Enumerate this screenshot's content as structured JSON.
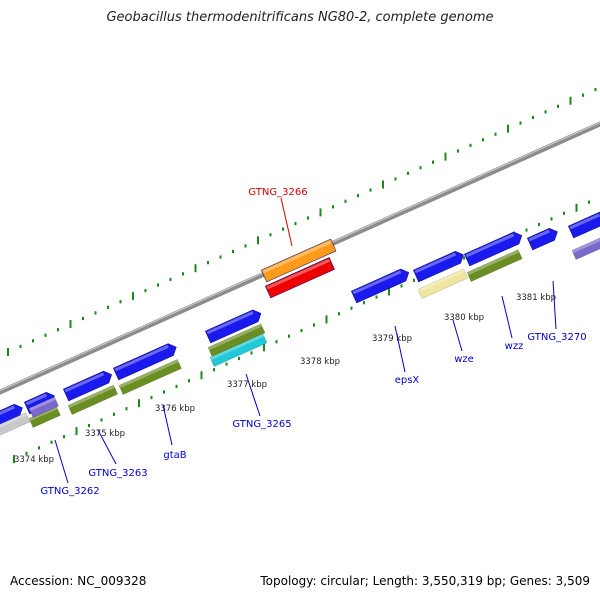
{
  "title": "Geobacillus thermodenitrificans NG80-2, complete genome",
  "accession_label": "Accession: NC_009328",
  "topology_label": "Topology: circular; Length: 3,550,319 bp; Genes: 3,509",
  "scale_labels": [
    "3374 kbp",
    "3375 kbp",
    "3376 kbp",
    "3377 kbp",
    "3378 kbp",
    "3379 kbp",
    "3380 kbp",
    "3381 kbp"
  ],
  "gene_labels": [
    {
      "name": "GTNG_3262",
      "color": "#0000cc"
    },
    {
      "name": "GTNG_3263",
      "color": "#0000cc"
    },
    {
      "name": "gtaB",
      "color": "#0000cc"
    },
    {
      "name": "GTNG_3265",
      "color": "#0000cc"
    },
    {
      "name": "GTNG_3266",
      "color": "#cc0000"
    },
    {
      "name": "epsX",
      "color": "#0000cc"
    },
    {
      "name": "wze",
      "color": "#0000cc"
    },
    {
      "name": "wzz",
      "color": "#0000cc"
    },
    {
      "name": "GTNG_3270",
      "color": "#0000cc"
    }
  ],
  "colors": {
    "backbone": "#8c8c8c",
    "gene_forward": "#1a1aee",
    "gene_highlight_orange": "#ff9a1a",
    "gene_highlight_red": "#ee0000",
    "go_olive": "#6b8e23",
    "go_cyan": "#20c8d8",
    "go_purple": "#7b68cc",
    "go_cream": "#f0e6a0",
    "go_grey": "#c8c8c8",
    "tick_green": "#1a8a1a"
  }
}
